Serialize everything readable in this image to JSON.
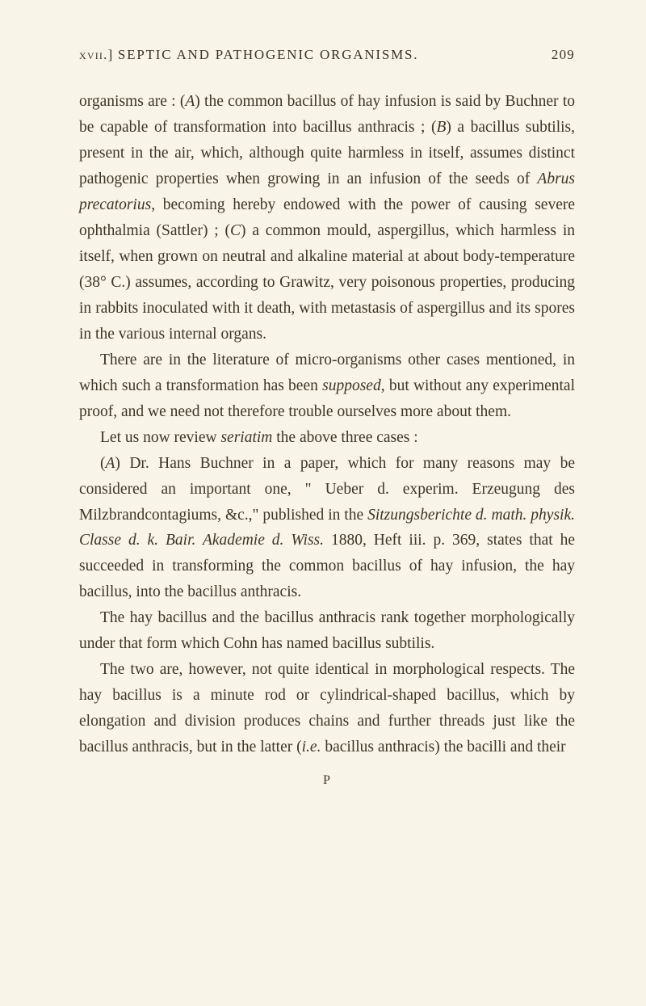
{
  "header": {
    "chapter": "xvii.]",
    "title": "SEPTIC AND PATHOGENIC ORGANISMS.",
    "pageNumber": "209"
  },
  "paragraphs": {
    "p1_a": "organisms are : (",
    "p1_A": "A",
    "p1_b": ") the common bacillus of hay infusion is said by Buchner to be capable of transformation into bacillus anthracis ; (",
    "p1_B": "B",
    "p1_c": ") a bacillus subtilis, present in the air, which, although quite harmless in itself, assumes distinct pathogenic properties when growing in an infusion of the seeds of ",
    "p1_abrus": "Abrus precatorius",
    "p1_d": ", becoming hereby endowed with the power of causing severe ophthalmia (Sattler) ; (",
    "p1_C": "C",
    "p1_e": ") a common mould, aspergillus, which harmless in itself, when grown on neutral and alkaline material at about body-temperature (38° C.) assumes, according to Grawitz, very poisonous properties, producing in rabbits inoculated with it death, with metastasis of aspergillus and its spores in the various internal organs.",
    "p2_a": "There are in the literature of micro-organisms other cases mentioned, in which such a transformation has been ",
    "p2_supposed": "supposed",
    "p2_b": ", but without any experimental proof, and we need not therefore trouble ourselves more about them.",
    "p3_a": "Let us now review ",
    "p3_seriatim": "seriatim",
    "p3_b": " the above three cases :",
    "p4_a": "(",
    "p4_A": "A",
    "p4_b": ") Dr. Hans Buchner in a paper, which for many reasons may be considered an important one, \" Ueber d. experim. Erzeugung des Milzbrandcontagiums, &c.,\" published in the ",
    "p4_sitz": "Sitzungsberichte d. math. physik. Classe d. k. Bair. Akademie d. Wiss.",
    "p4_c": " 1880, Heft iii. p. 369, states that he succeeded in transforming the common bacillus of hay infusion, the hay bacillus, into the bacillus anthracis.",
    "p5": "The hay bacillus and the bacillus anthracis rank together morphologically under that form which Cohn has named bacillus subtilis.",
    "p6_a": "The two are, however, not quite identical in morphological respects. The hay bacillus is a minute rod or cylindrical-shaped bacillus, which by elongation and division produces chains and further threads just like the bacillus anthracis, but in the latter (",
    "p6_ie": "i.e.",
    "p6_b": " bacillus anthracis) the bacilli and their"
  },
  "catchword": "P",
  "colors": {
    "background": "#f8f4e8",
    "text": "#3d3526"
  },
  "typography": {
    "body_fontsize": 19.5,
    "body_lineheight": 1.64,
    "header_fontsize": 17
  }
}
